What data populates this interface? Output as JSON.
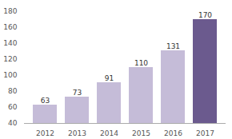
{
  "chart_data": {
    "type": "bar",
    "categories": [
      "2012",
      "2013",
      "2014",
      "2015",
      "2016",
      "2017"
    ],
    "values": [
      63,
      73,
      91,
      110,
      131,
      170
    ],
    "colors": [
      "#c5bcd8",
      "#c5bcd8",
      "#c5bcd8",
      "#c5bcd8",
      "#c5bcd8",
      "#6b5a8e"
    ],
    "ylim": [
      40,
      180
    ],
    "yticks": [
      40,
      60,
      80,
      100,
      120,
      140,
      160,
      180
    ],
    "data_labels": true,
    "grid": false
  }
}
